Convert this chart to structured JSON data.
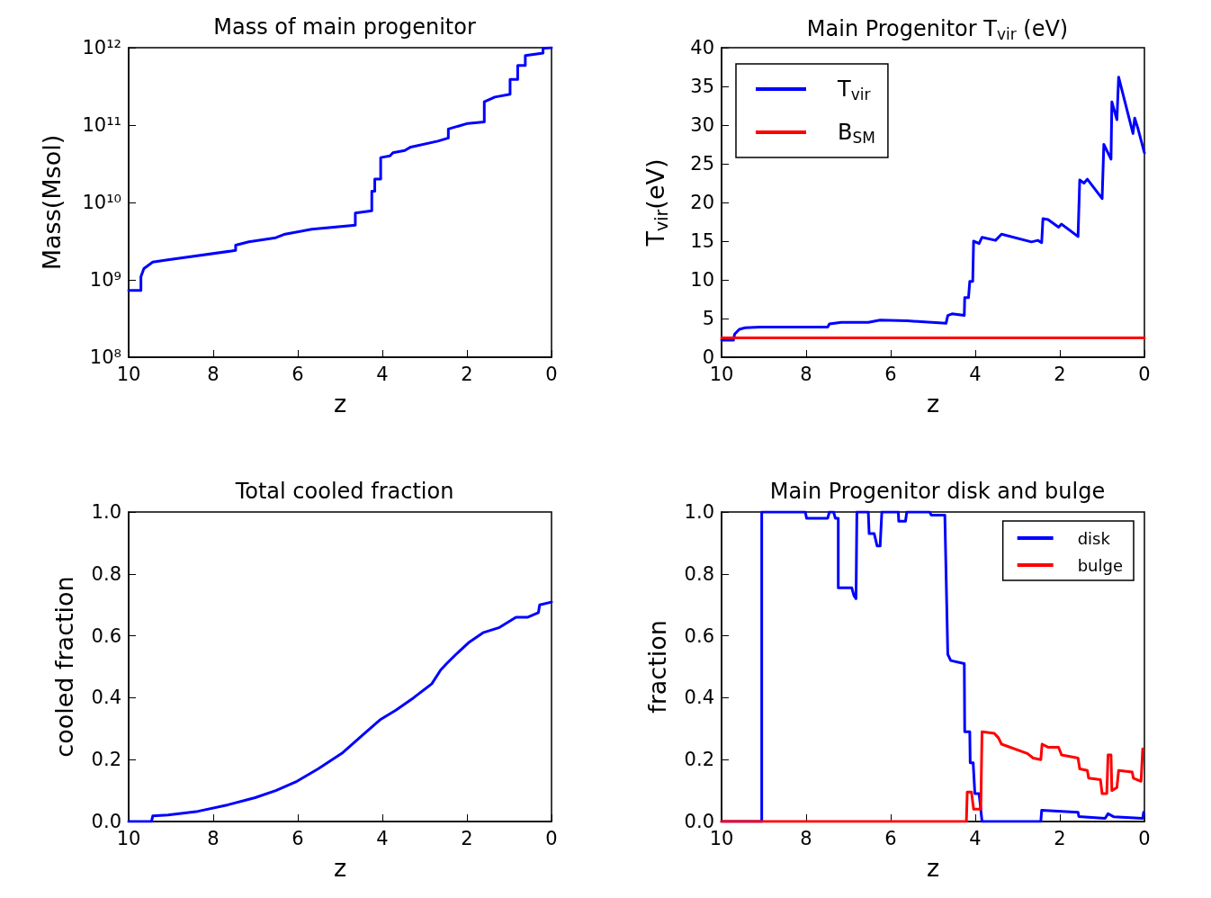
{
  "chart_data": [
    {
      "type": "line",
      "title": "Mass of main progenitor",
      "xlabel": "z",
      "ylabel": "Mass(Msol)",
      "log": "y",
      "grid": false,
      "legend": false,
      "marker": "none",
      "xlim": [
        10,
        0
      ],
      "xticks": [
        10,
        8,
        6,
        4,
        2,
        0
      ],
      "ylim": [
        100000000,
        1000000000000
      ],
      "yticks": [
        {
          "value": 100000000,
          "label": "10⁸"
        },
        {
          "value": 1000000000,
          "label": "10⁹"
        },
        {
          "value": 10000000000,
          "label": "10¹⁰"
        },
        {
          "value": 100000000000,
          "label": "10¹¹"
        },
        {
          "value": 1000000000000,
          "label": "10¹²"
        }
      ],
      "series": [
        {
          "color": "#0000ff",
          "x": [
            10,
            9.71,
            9.71,
            9.64,
            9.43,
            9.11,
            7.47,
            7.47,
            7.16,
            6.52,
            6.3,
            5.67,
            4.64,
            4.64,
            4.25,
            4.25,
            4.18,
            4.18,
            4.04,
            4.04,
            3.82,
            3.75,
            3.47,
            3.33,
            2.69,
            2.44,
            2.44,
            2.26,
            1.98,
            1.59,
            1.59,
            1.34,
            0.98,
            0.98,
            0.8,
            0.8,
            0.62,
            0.62,
            0.2,
            0.2,
            0
          ],
          "values": [
            730000000,
            730000000,
            1100000000,
            1400000000,
            1700000000,
            1800000000,
            2400000000,
            2800000000,
            3100000000,
            3500000000,
            3900000000,
            4500000000,
            5100000000,
            7300000000,
            7800000000,
            14000000000,
            14000000000,
            20000000000,
            20000000000,
            38000000000,
            40000000000,
            44000000000,
            47000000000,
            52000000000,
            62000000000,
            68000000000,
            89000000000,
            95000000000,
            105000000000,
            110000000000,
            200000000000,
            230000000000,
            250000000000,
            390000000000,
            390000000000,
            590000000000,
            590000000000,
            790000000000,
            850000000000,
            980000000000,
            1000000000000
          ]
        }
      ]
    },
    {
      "type": "line",
      "title": "Main Progenitor T$_{vir}$ (eV)",
      "xlabel": "z",
      "ylabel": "T$_{vir}$(eV)",
      "grid": false,
      "legend": "top left",
      "marker": "none",
      "xlim": [
        10,
        0
      ],
      "xticks": [
        10,
        8,
        6,
        4,
        2,
        0
      ],
      "ylim": [
        0,
        40
      ],
      "yticks": [
        0,
        5,
        10,
        15,
        20,
        25,
        30,
        35,
        40
      ],
      "series": [
        {
          "name": "T$_{vir}$",
          "color": "#0000ff",
          "x": [
            10,
            9.72,
            9.69,
            9.58,
            9.44,
            9.09,
            7.49,
            7.45,
            7.17,
            6.53,
            6.25,
            5.61,
            4.69,
            4.65,
            4.55,
            4.26,
            4.25,
            4.16,
            4.13,
            4.06,
            4.04,
            3.91,
            3.84,
            3.52,
            3.38,
            2.67,
            2.52,
            2.43,
            2.4,
            2.28,
            2.03,
            1.96,
            1.57,
            1.53,
            1.43,
            1.35,
            1.0,
            0.96,
            0.79,
            0.77,
            0.65,
            0.61,
            0.27,
            0.23,
            0.15,
            0
          ],
          "values": [
            2.2,
            2.2,
            3.0,
            3.6,
            3.8,
            3.9,
            3.9,
            4.3,
            4.5,
            4.5,
            4.8,
            4.7,
            4.4,
            5.4,
            5.6,
            5.4,
            7.7,
            7.7,
            9.8,
            9.8,
            15.0,
            14.7,
            15.5,
            15.1,
            15.9,
            14.9,
            15.1,
            14.8,
            17.9,
            17.8,
            16.8,
            17.2,
            15.6,
            22.9,
            22.5,
            23.0,
            20.5,
            27.5,
            25.6,
            33.0,
            30.7,
            36.2,
            28.9,
            30.9,
            29.5,
            26.4
          ]
        },
        {
          "name": "B$_{SM}$",
          "color": "#ff0000",
          "x": [
            10,
            0
          ],
          "values": [
            2.5,
            2.5
          ]
        }
      ]
    },
    {
      "type": "line",
      "title": "Total cooled fraction",
      "xlabel": "z",
      "ylabel": "cooled fraction",
      "grid": false,
      "legend": false,
      "marker": "none",
      "xlim": [
        10,
        0
      ],
      "xticks": [
        10,
        8,
        6,
        4,
        2,
        0
      ],
      "ylim": [
        0,
        1
      ],
      "yticks": [
        {
          "value": 0,
          "label": "0.0"
        },
        0.2,
        0.4,
        0.6,
        0.8,
        {
          "value": 1,
          "label": "1.0"
        }
      ],
      "series": [
        {
          "color": "#0000ff",
          "x": [
            10,
            9.46,
            9.43,
            9.07,
            8.36,
            7.65,
            7.01,
            6.52,
            6.02,
            5.52,
            4.96,
            4.46,
            4.04,
            3.68,
            3.26,
            2.83,
            2.62,
            2.48,
            2.26,
            1.94,
            1.62,
            1.23,
            0.84,
            0.56,
            0.31,
            0.28,
            0
          ],
          "values": [
            0,
            0,
            0.018,
            0.021,
            0.033,
            0.054,
            0.077,
            0.1,
            0.13,
            0.17,
            0.22,
            0.28,
            0.33,
            0.36,
            0.4,
            0.445,
            0.49,
            0.51,
            0.54,
            0.58,
            0.61,
            0.627,
            0.66,
            0.66,
            0.675,
            0.7,
            0.709
          ]
        }
      ]
    },
    {
      "type": "line",
      "title": "Main Progenitor disk and bulge",
      "xlabel": "z",
      "ylabel": "fraction",
      "grid": false,
      "legend": "top right",
      "marker": "none",
      "xlim": [
        10,
        0
      ],
      "xticks": [
        10,
        8,
        6,
        4,
        2,
        0
      ],
      "ylim": [
        0,
        1
      ],
      "yticks": [
        {
          "value": 0,
          "label": "0.0"
        },
        0.2,
        0.4,
        0.6,
        0.8,
        {
          "value": 1,
          "label": "1.0"
        }
      ],
      "series": [
        {
          "name": "disk",
          "color": "#0000ff",
          "x": [
            10,
            9.05,
            9.05,
            8.02,
            7.99,
            7.49,
            7.45,
            7.35,
            7.31,
            7.24,
            7.24,
            6.92,
            6.87,
            6.82,
            6.8,
            6.53,
            6.51,
            6.39,
            6.32,
            6.25,
            6.21,
            5.82,
            5.81,
            5.65,
            5.62,
            5.08,
            5.04,
            4.72,
            4.65,
            4.58,
            4.26,
            4.25,
            4.13,
            4.12,
            4.05,
            4.01,
            3.91,
            3.84,
            2.45,
            2.43,
            1.57,
            1.55,
            0.93,
            0.86,
            0.72,
            0.04,
            0.02
          ],
          "values": [
            0,
            0,
            1.0,
            1.0,
            0.98,
            0.98,
            1.0,
            1.0,
            0.98,
            0.98,
            0.755,
            0.755,
            0.73,
            0.72,
            1.0,
            1.0,
            0.93,
            0.93,
            0.89,
            0.89,
            1.0,
            1.0,
            0.97,
            0.97,
            1.0,
            1.0,
            0.99,
            0.99,
            0.54,
            0.52,
            0.51,
            0.29,
            0.29,
            0.19,
            0.19,
            0.09,
            0.09,
            0,
            0,
            0.036,
            0.03,
            0.016,
            0.01,
            0.025,
            0.015,
            0.01,
            0.03
          ]
        },
        {
          "name": "bulge",
          "color": "#ff0000",
          "x": [
            10,
            4.21,
            4.19,
            4.09,
            4.04,
            3.87,
            3.84,
            3.55,
            3.45,
            3.38,
            2.77,
            2.63,
            2.45,
            2.42,
            2.28,
            2.03,
            1.96,
            1.57,
            1.53,
            1.35,
            1.32,
            1.04,
            1.0,
            0.89,
            0.86,
            0.79,
            0.77,
            0.65,
            0.61,
            0.29,
            0.26,
            0.08,
            0.04
          ],
          "values": [
            0,
            0,
            0.095,
            0.095,
            0.04,
            0.04,
            0.29,
            0.285,
            0.27,
            0.25,
            0.22,
            0.205,
            0.2,
            0.25,
            0.24,
            0.24,
            0.215,
            0.205,
            0.17,
            0.165,
            0.14,
            0.135,
            0.09,
            0.09,
            0.215,
            0.215,
            0.1,
            0.11,
            0.165,
            0.16,
            0.14,
            0.13,
            0.235
          ]
        }
      ]
    }
  ]
}
